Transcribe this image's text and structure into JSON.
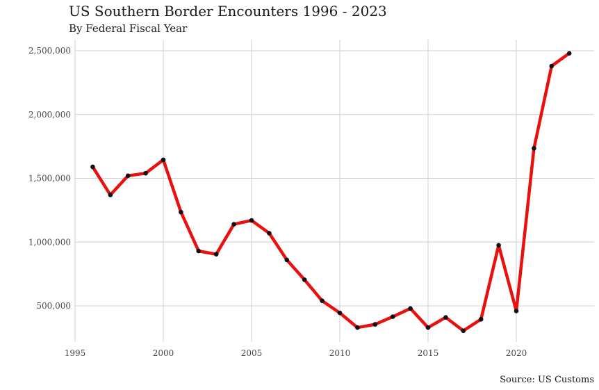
{
  "chart_data": {
    "type": "line",
    "title": "US Southern Border Encounters 1996 - 2023",
    "subtitle": "By Federal Fiscal Year",
    "caption": "Source: US Customs",
    "xlabel": "",
    "ylabel": "",
    "x": [
      1996,
      1997,
      1998,
      1999,
      2000,
      2001,
      2002,
      2003,
      2004,
      2005,
      2006,
      2007,
      2008,
      2009,
      2010,
      2011,
      2012,
      2013,
      2014,
      2015,
      2016,
      2017,
      2018,
      2019,
      2020,
      2021,
      2022,
      2023
    ],
    "series": [
      {
        "values": [
          1590000,
          1370000,
          1520000,
          1540000,
          1645000,
          1235000,
          930000,
          905000,
          1140000,
          1170000,
          1070000,
          860000,
          705000,
          540000,
          445000,
          330000,
          355000,
          415000,
          480000,
          330000,
          410000,
          305000,
          395000,
          975000,
          460000,
          1735000,
          2380000,
          2480000
        ],
        "color": "#e8110f",
        "marker_color": "#111111"
      }
    ],
    "xlim": [
      1995,
      2023
    ],
    "ylim": [
      230000,
      2520000
    ],
    "xticks": [
      1995,
      2000,
      2005,
      2010,
      2015,
      2020
    ],
    "xtick_labels": [
      "1995",
      "2000",
      "2005",
      "2010",
      "2015",
      "2020"
    ],
    "yticks": [
      500000,
      1000000,
      1500000,
      2000000,
      2500000
    ],
    "ytick_labels": [
      "500,000",
      "1,000,000",
      "1,500,000",
      "2,000,000",
      "2,500,000"
    ],
    "grid": true,
    "legend": "none"
  }
}
